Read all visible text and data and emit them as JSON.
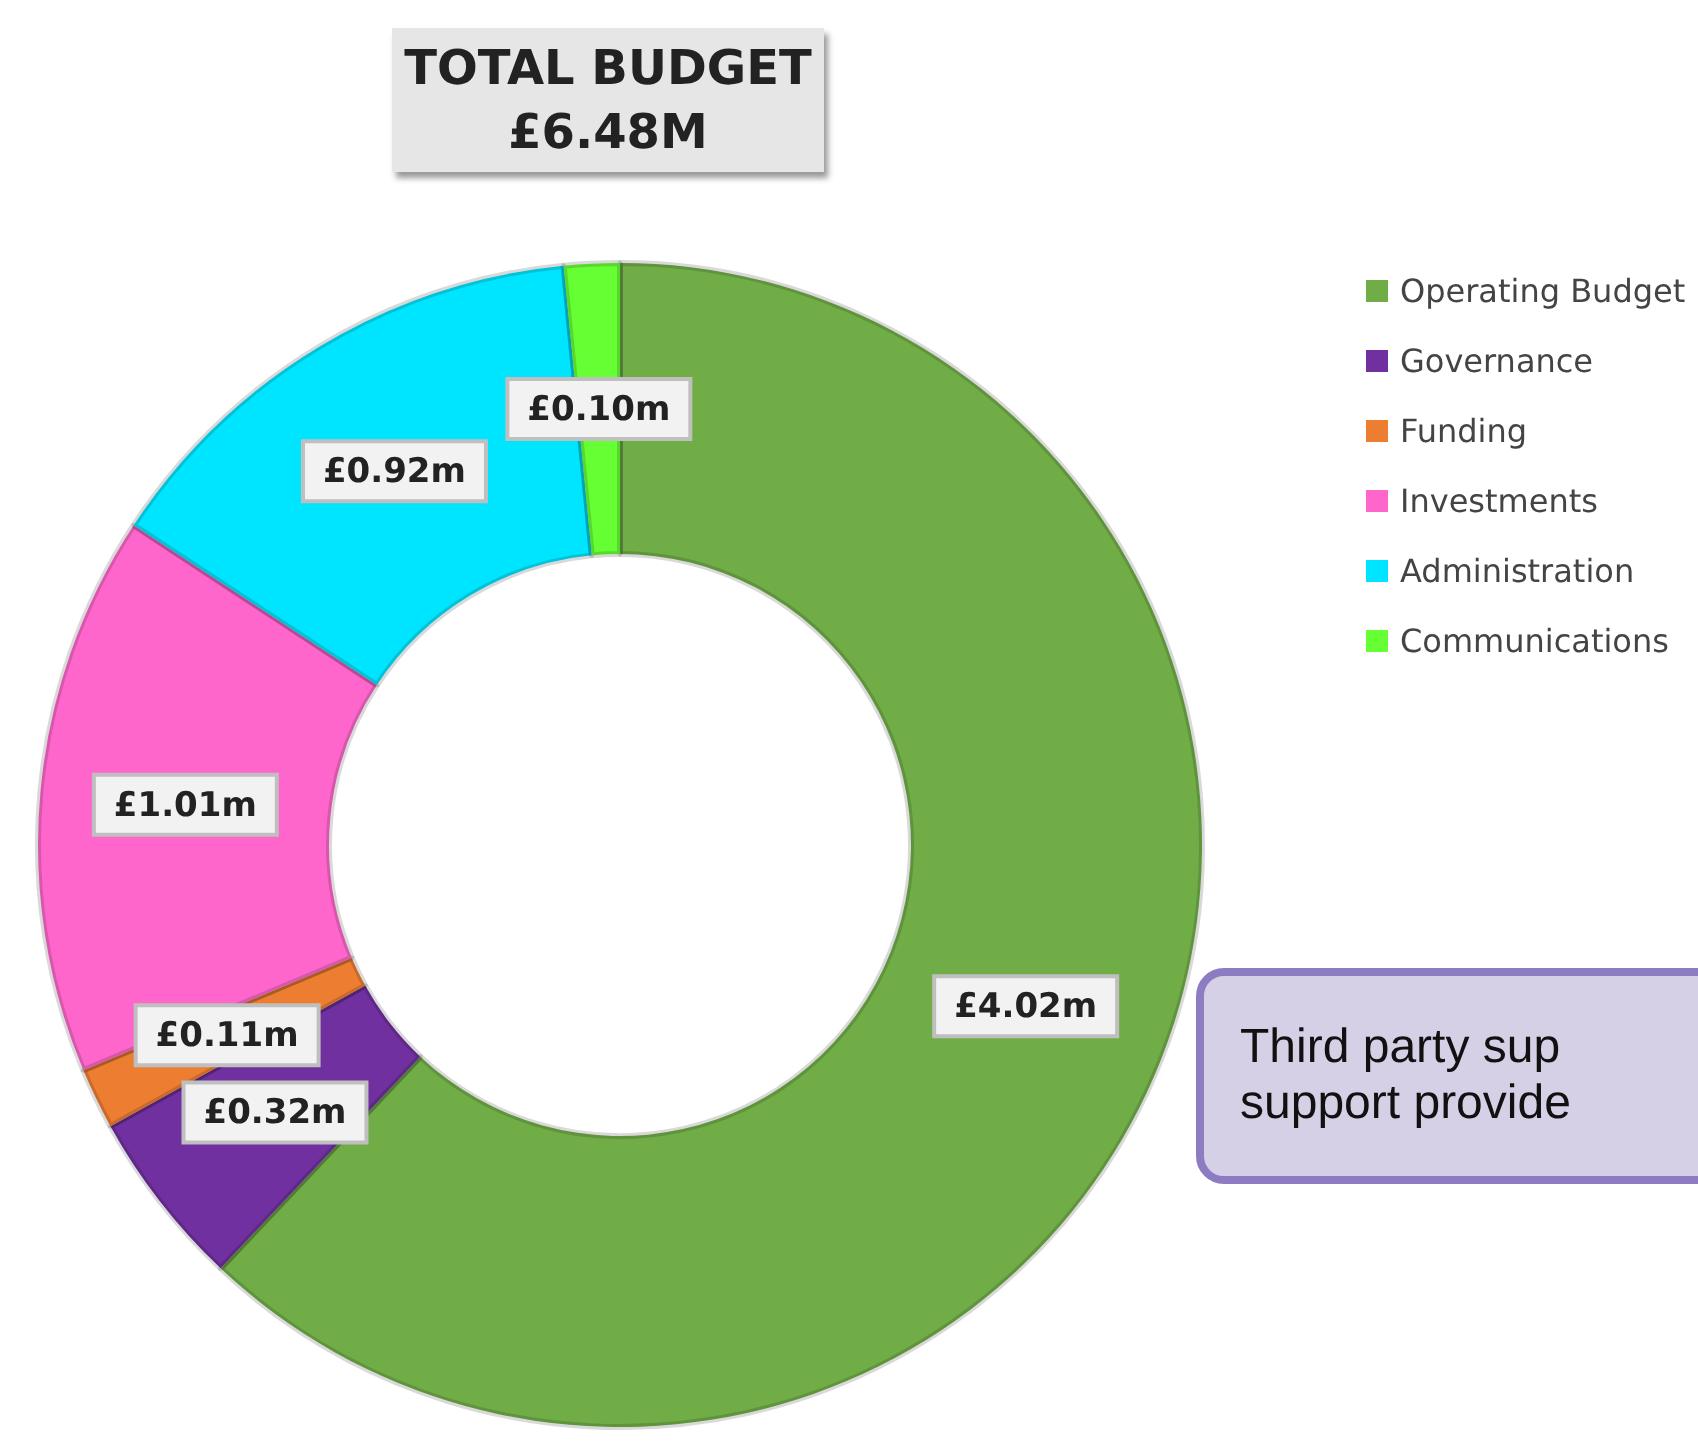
{
  "chart_data": {
    "type": "donut",
    "title": "TOTAL BUDGET\n£6.48M",
    "categories": [
      "Operating Budget",
      "Governance",
      "Funding",
      "Investments",
      "Administration",
      "Communications"
    ],
    "values": [
      4.02,
      0.32,
      0.11,
      1.01,
      0.92,
      0.1
    ],
    "value_labels": [
      "£4.02m",
      "£0.32m",
      "£0.11m",
      "£1.01m",
      "£0.92m",
      "£0.10m"
    ],
    "colors": [
      "#70ad47",
      "#7030a0",
      "#ed7d31",
      "#ff66cc",
      "#00e5ff",
      "#66ff33"
    ],
    "legend": "top right",
    "annotations": [
      "Third party sup\nsupport provide"
    ]
  }
}
